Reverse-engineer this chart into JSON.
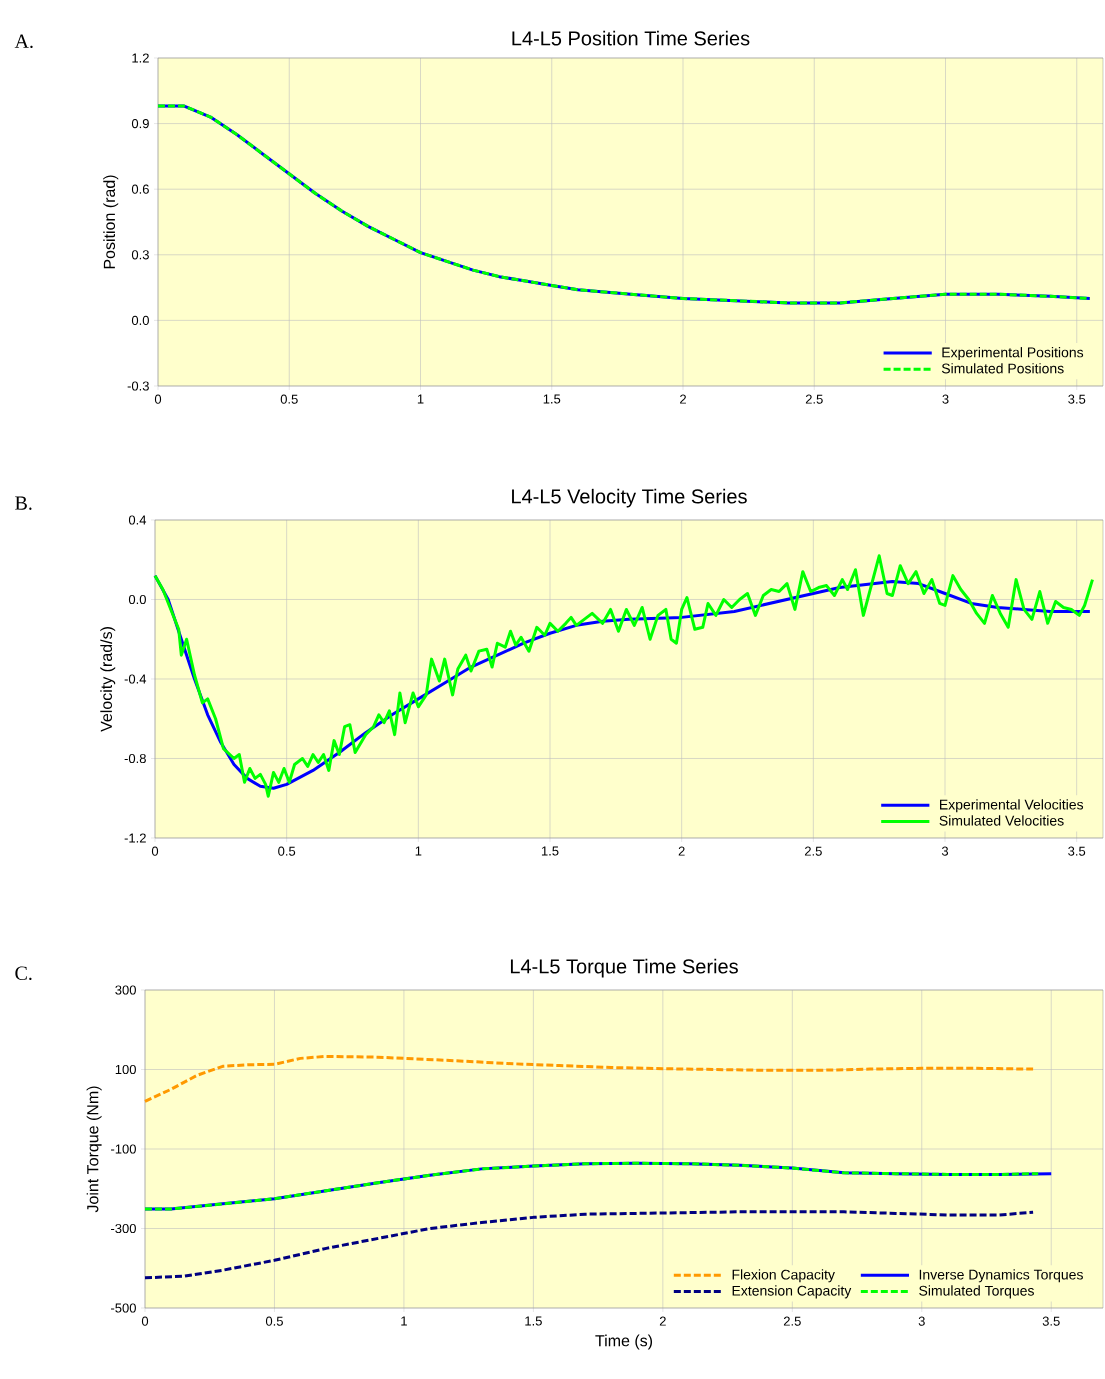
{
  "chart_data": [
    {
      "type": "line",
      "title": "L4-L5 Position Time Series",
      "ylabel": "Position (rad)",
      "annotations": [
        "A."
      ],
      "x": [
        0,
        0.1,
        0.2,
        0.3,
        0.4,
        0.5,
        0.6,
        0.7,
        0.8,
        0.9,
        1.0,
        1.1,
        1.2,
        1.3,
        1.4,
        1.5,
        1.6,
        1.7,
        1.8,
        1.9,
        2.0,
        2.2,
        2.4,
        2.6,
        2.8,
        3.0,
        3.2,
        3.4,
        3.55
      ],
      "series": [
        {
          "name": "Experimental Positions",
          "color": "#0000ff",
          "line_style": "solid",
          "values": [
            0.98,
            0.98,
            0.93,
            0.85,
            0.76,
            0.67,
            0.58,
            0.5,
            0.43,
            0.37,
            0.31,
            0.27,
            0.23,
            0.2,
            0.18,
            0.16,
            0.14,
            0.13,
            0.12,
            0.11,
            0.1,
            0.09,
            0.08,
            0.08,
            0.1,
            0.12,
            0.12,
            0.11,
            0.1
          ]
        },
        {
          "name": "Simulated Positions",
          "color": "#00ff00",
          "line_style": "dashed",
          "values": [
            0.98,
            0.98,
            0.93,
            0.85,
            0.76,
            0.67,
            0.58,
            0.5,
            0.43,
            0.37,
            0.31,
            0.27,
            0.23,
            0.2,
            0.18,
            0.16,
            0.14,
            0.13,
            0.12,
            0.11,
            0.1,
            0.09,
            0.08,
            0.08,
            0.1,
            0.12,
            0.12,
            0.11,
            0.1
          ]
        }
      ],
      "xlim": [
        0,
        3.6
      ],
      "xticks": [
        0,
        0.5,
        1,
        1.5,
        2,
        2.5,
        3,
        3.5
      ],
      "ylim": [
        -0.3,
        1.2
      ],
      "yticks": [
        -0.3,
        {
          "value": 0,
          "label": "0.0"
        },
        0.3,
        0.6,
        0.9,
        1.2
      ],
      "grid": true,
      "legend": "bottom right"
    },
    {
      "type": "line",
      "title": "L4-L5 Velocity Time Series",
      "ylabel": "Velocity (rad/s)",
      "annotations": [
        "B."
      ],
      "series": [
        {
          "name": "Experimental Velocities",
          "color": "#0000ff",
          "line_style": "solid",
          "x": [
            0,
            0.05,
            0.1,
            0.15,
            0.2,
            0.25,
            0.3,
            0.35,
            0.4,
            0.45,
            0.5,
            0.6,
            0.7,
            0.8,
            0.9,
            1.0,
            1.1,
            1.2,
            1.3,
            1.4,
            1.5,
            1.6,
            1.7,
            1.8,
            2.0,
            2.2,
            2.4,
            2.6,
            2.8,
            2.9,
            3.0,
            3.1,
            3.2,
            3.3,
            3.4,
            3.55
          ],
          "values": [
            0.12,
            0.0,
            -0.2,
            -0.4,
            -0.58,
            -0.72,
            -0.83,
            -0.9,
            -0.94,
            -0.95,
            -0.93,
            -0.86,
            -0.77,
            -0.67,
            -0.58,
            -0.5,
            -0.42,
            -0.34,
            -0.28,
            -0.22,
            -0.17,
            -0.13,
            -0.11,
            -0.1,
            -0.09,
            -0.06,
            0.0,
            0.06,
            0.09,
            0.08,
            0.03,
            -0.02,
            -0.04,
            -0.05,
            -0.06,
            -0.06
          ]
        },
        {
          "name": "Simulated Velocities",
          "color": "#00ff00",
          "line_style": "solid",
          "x": [
            0,
            0.03,
            0.06,
            0.09,
            0.1,
            0.12,
            0.15,
            0.18,
            0.2,
            0.23,
            0.26,
            0.3,
            0.32,
            0.34,
            0.36,
            0.38,
            0.4,
            0.42,
            0.43,
            0.45,
            0.47,
            0.49,
            0.51,
            0.53,
            0.56,
            0.58,
            0.6,
            0.62,
            0.64,
            0.66,
            0.68,
            0.7,
            0.72,
            0.74,
            0.76,
            0.8,
            0.83,
            0.85,
            0.87,
            0.89,
            0.91,
            0.93,
            0.95,
            0.98,
            1.0,
            1.03,
            1.05,
            1.08,
            1.1,
            1.13,
            1.15,
            1.18,
            1.2,
            1.23,
            1.26,
            1.28,
            1.3,
            1.33,
            1.35,
            1.37,
            1.39,
            1.42,
            1.45,
            1.48,
            1.5,
            1.53,
            1.56,
            1.58,
            1.6,
            1.63,
            1.66,
            1.7,
            1.73,
            1.76,
            1.79,
            1.82,
            1.85,
            1.88,
            1.91,
            1.94,
            1.96,
            1.98,
            2.0,
            2.02,
            2.05,
            2.08,
            2.1,
            2.13,
            2.16,
            2.19,
            2.22,
            2.25,
            2.28,
            2.31,
            2.34,
            2.37,
            2.4,
            2.43,
            2.46,
            2.49,
            2.52,
            2.55,
            2.58,
            2.61,
            2.63,
            2.66,
            2.69,
            2.72,
            2.75,
            2.78,
            2.8,
            2.83,
            2.86,
            2.89,
            2.92,
            2.95,
            2.98,
            3.0,
            3.03,
            3.06,
            3.09,
            3.12,
            3.15,
            3.18,
            3.21,
            3.24,
            3.27,
            3.3,
            3.33,
            3.36,
            3.39,
            3.42,
            3.45,
            3.48,
            3.51,
            3.53,
            3.56
          ],
          "values": [
            0.12,
            0.05,
            -0.05,
            -0.15,
            -0.28,
            -0.2,
            -0.38,
            -0.52,
            -0.5,
            -0.6,
            -0.75,
            -0.8,
            -0.78,
            -0.92,
            -0.85,
            -0.9,
            -0.88,
            -0.93,
            -0.99,
            -0.87,
            -0.92,
            -0.85,
            -0.92,
            -0.83,
            -0.8,
            -0.84,
            -0.78,
            -0.82,
            -0.78,
            -0.86,
            -0.71,
            -0.78,
            -0.64,
            -0.63,
            -0.77,
            -0.68,
            -0.64,
            -0.58,
            -0.62,
            -0.56,
            -0.68,
            -0.47,
            -0.62,
            -0.47,
            -0.54,
            -0.48,
            -0.3,
            -0.41,
            -0.3,
            -0.48,
            -0.35,
            -0.28,
            -0.36,
            -0.26,
            -0.25,
            -0.34,
            -0.22,
            -0.24,
            -0.16,
            -0.23,
            -0.19,
            -0.26,
            -0.14,
            -0.18,
            -0.12,
            -0.16,
            -0.12,
            -0.09,
            -0.13,
            -0.1,
            -0.07,
            -0.12,
            -0.05,
            -0.16,
            -0.05,
            -0.13,
            -0.04,
            -0.2,
            -0.08,
            -0.05,
            -0.2,
            -0.22,
            -0.05,
            0.01,
            -0.15,
            -0.14,
            -0.02,
            -0.08,
            0.0,
            -0.04,
            0.0,
            0.03,
            -0.08,
            0.02,
            0.05,
            0.04,
            0.08,
            -0.05,
            0.14,
            0.04,
            0.06,
            0.07,
            0.02,
            0.1,
            0.05,
            0.15,
            -0.08,
            0.07,
            0.22,
            0.03,
            0.02,
            0.17,
            0.08,
            0.14,
            0.03,
            0.1,
            -0.02,
            -0.03,
            0.12,
            0.05,
            0.0,
            -0.07,
            -0.12,
            0.02,
            -0.07,
            -0.14,
            0.1,
            -0.05,
            -0.1,
            0.04,
            -0.12,
            -0.01,
            -0.04,
            -0.05,
            -0.08,
            -0.03,
            0.1
          ]
        }
      ],
      "xlim": [
        0,
        3.6
      ],
      "xticks": [
        0,
        0.5,
        1,
        1.5,
        2,
        2.5,
        3,
        3.5
      ],
      "ylim": [
        -1.2,
        0.4
      ],
      "yticks": [
        -1.2,
        -0.8,
        -0.4,
        {
          "value": 0,
          "label": "0.0"
        },
        0.4
      ],
      "grid": true,
      "legend": "bottom right"
    },
    {
      "type": "line",
      "title": "L4-L5 Torque Time Series",
      "xlabel": "Time (s)",
      "ylabel": "Joint Torque (Nm)",
      "annotations": [
        "C."
      ],
      "series": [
        {
          "name": "Flexion Capacity",
          "color": "#ff9900",
          "line_style": "dashed",
          "x": [
            0,
            0.1,
            0.2,
            0.3,
            0.4,
            0.5,
            0.6,
            0.7,
            0.8,
            0.9,
            1.0,
            1.2,
            1.4,
            1.6,
            1.8,
            2.0,
            2.2,
            2.4,
            2.6,
            2.8,
            3.0,
            3.2,
            3.43
          ],
          "values": [
            20,
            50,
            85,
            108,
            112,
            113,
            128,
            133,
            132,
            131,
            128,
            122,
            115,
            110,
            105,
            102,
            100,
            98,
            98,
            101,
            103,
            103,
            101
          ]
        },
        {
          "name": "Extension Capacity",
          "color": "#000080",
          "line_style": "dashed",
          "x": [
            0,
            0.15,
            0.3,
            0.5,
            0.7,
            0.9,
            1.1,
            1.3,
            1.5,
            1.7,
            1.9,
            2.1,
            2.3,
            2.5,
            2.7,
            2.9,
            3.1,
            3.3,
            3.43
          ],
          "values": [
            -424,
            -420,
            -405,
            -380,
            -350,
            -325,
            -300,
            -285,
            -272,
            -264,
            -262,
            -260,
            -258,
            -258,
            -258,
            -262,
            -266,
            -266,
            -259
          ]
        },
        {
          "name": "Inverse Dynamics Torques",
          "color": "#0000ff",
          "line_style": "solid",
          "x": [
            0,
            0.1,
            0.3,
            0.5,
            0.7,
            0.9,
            1.1,
            1.3,
            1.5,
            1.7,
            1.9,
            2.1,
            2.3,
            2.5,
            2.7,
            2.9,
            3.1,
            3.3,
            3.5
          ],
          "values": [
            -251,
            -251,
            -238,
            -225,
            -205,
            -185,
            -166,
            -150,
            -143,
            -137,
            -136,
            -137,
            -141,
            -148,
            -160,
            -162,
            -164,
            -164,
            -162
          ]
        },
        {
          "name": "Simulated Torques",
          "color": "#00ff00",
          "line_style": "dashed",
          "x": [
            0,
            0.1,
            0.3,
            0.5,
            0.7,
            0.9,
            1.1,
            1.3,
            1.5,
            1.7,
            1.9,
            2.1,
            2.3,
            2.5,
            2.7,
            2.9,
            3.1,
            3.3,
            3.45
          ],
          "values": [
            -251,
            -251,
            -238,
            -225,
            -205,
            -185,
            -166,
            -150,
            -143,
            -137,
            -136,
            -137,
            -141,
            -148,
            -160,
            -162,
            -164,
            -164,
            -162
          ]
        }
      ],
      "xlim": [
        0,
        3.7
      ],
      "xticks": [
        0,
        0.5,
        1,
        1.5,
        2,
        2.5,
        3,
        3.5
      ],
      "ylim": [
        -500,
        300
      ],
      "yticks": [
        -500,
        -300,
        -100,
        100,
        300
      ],
      "grid": true,
      "legend": "bottom right"
    }
  ]
}
